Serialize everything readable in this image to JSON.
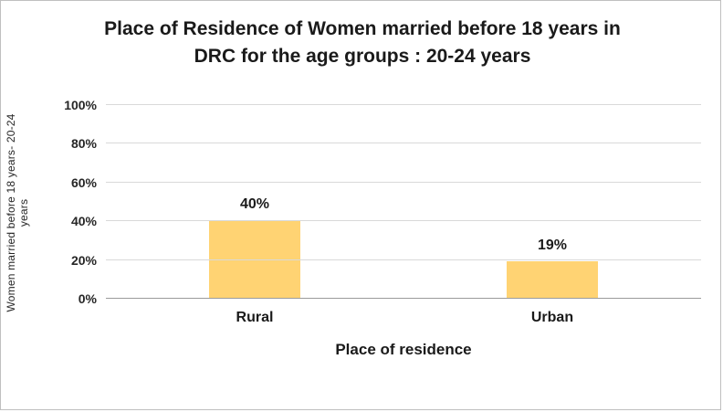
{
  "chart_data": {
    "type": "bar",
    "title": "Place of Residence of Women married before 18 years in DRC for the age groups : 20-24 years",
    "xlabel": "Place of residence",
    "ylabel": "Women married before 18 years- 20-24 years",
    "categories": [
      "Rural",
      "Urban"
    ],
    "values": [
      40,
      19
    ],
    "value_labels": [
      "40%",
      "19%"
    ],
    "ylim": [
      0,
      100
    ],
    "yticks": [
      {
        "value": 100,
        "label": "100%"
      },
      {
        "value": 80,
        "label": "80%"
      },
      {
        "value": 60,
        "label": "60%"
      },
      {
        "value": 40,
        "label": "40%"
      },
      {
        "value": 20,
        "label": "20%"
      },
      {
        "value": 0,
        "label": "0%"
      }
    ],
    "grid": true,
    "legend": false,
    "bar_color": "#ffd373",
    "gridline_color": "#d9d9d9",
    "axis_line_color": "#9b9b9b"
  }
}
